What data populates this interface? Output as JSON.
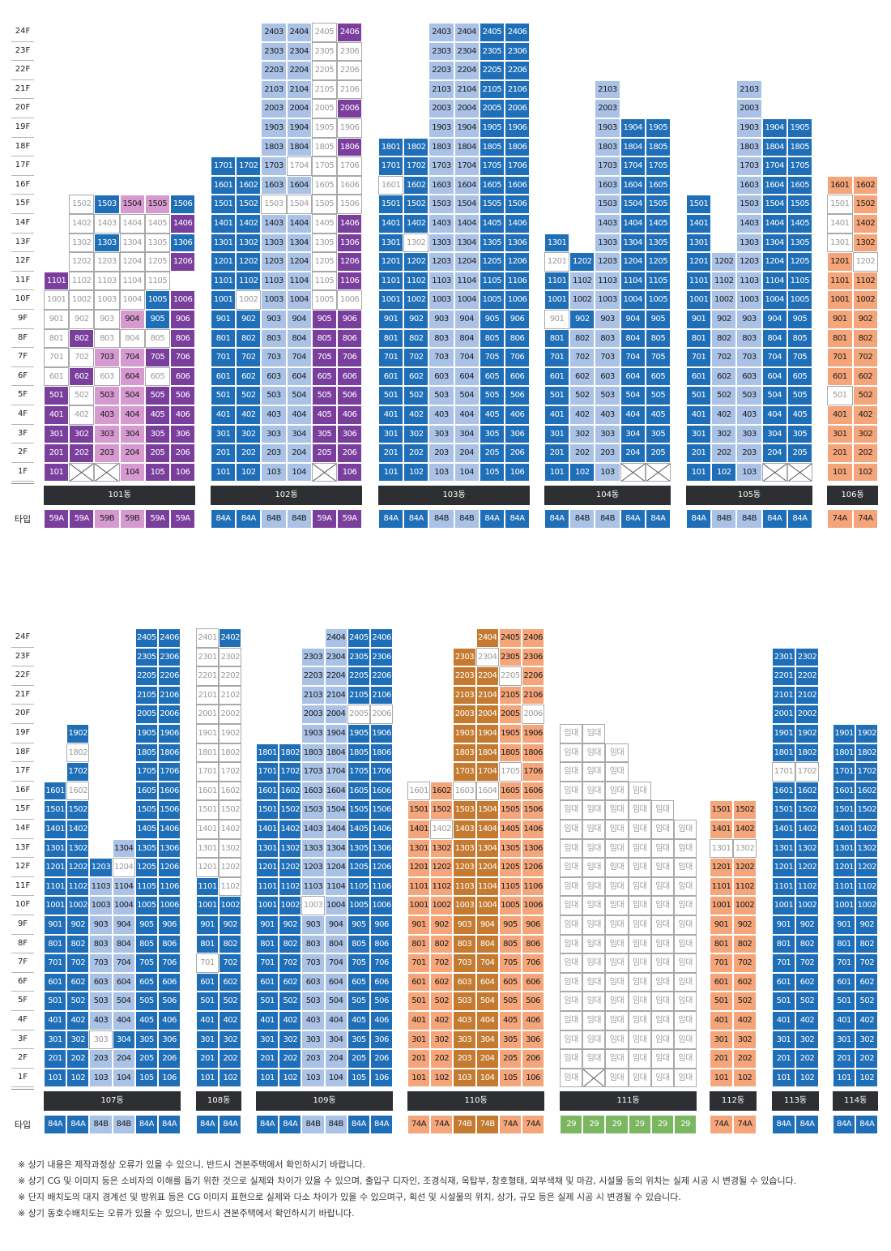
{
  "colors": {
    "D": "#1f6fb8",
    "L": "#a9c2e6",
    "P": "#7a3e9d",
    "K": "#d69ad0",
    "O": "#f4a57a",
    "B": "#c47a30",
    "W": "#ffffff",
    "G": "#7bb661"
  },
  "type_label": "타입",
  "floors": [
    "24F",
    "23F",
    "22F",
    "21F",
    "20F",
    "19F",
    "18F",
    "17F",
    "16F",
    "15F",
    "14F",
    "13F",
    "12F",
    "11F",
    "10F",
    "9F",
    "8F",
    "7F",
    "6F",
    "5F",
    "4F",
    "3F",
    "2F",
    "1F"
  ],
  "sections": [
    {
      "buildings": [
        {
          "name": "101동",
          "types": [
            "59A",
            "59A",
            "59B",
            "59B",
            "59A",
            "59A"
          ],
          "type_colors": "PPKKPP",
          "top": 15,
          "overrides": {
            "15": "WDKKD",
            "14": "WWWW",
            "13": "WDWWD",
            "12": "WWWW",
            "11": "PWWWW",
            "10": "WWWWDP",
            "9": "WWWKDP",
            "8": "WPWWWP",
            "7": "WWKKPP",
            "6": "WPWKWP",
            "5": "PWKKPP",
            "4": "PWKKPP",
            "3": "PPKKPP",
            "2": "PPKKPP",
            "1": "PPXKPP"
          },
          "xcols": [
            [
              1,
              2
            ]
          ],
          "col_counts": {
            "15": [
              1,
              5
            ],
            "14": [
              1,
              5
            ],
            "13": [
              1,
              5
            ],
            "12": [
              1,
              5
            ],
            "11": [
              0,
              5
            ]
          }
        },
        {
          "name": "102동",
          "types": [
            "84A",
            "84A",
            "84B",
            "84B",
            "59A",
            "59A"
          ],
          "type_colors": "DDLLPP",
          "top": 24,
          "overrides": {
            "24": "LLWP",
            "23": "LLWW",
            "22": "LLWW",
            "21": "LLWW",
            "20": "LLWP",
            "19": "LLWW",
            "18": "LLWP",
            "17": "DDLWWW",
            "16": "DDLLWW",
            "15": "DDWWWW",
            "14": "DDLLWP",
            "13": "DDLLWP",
            "12": "DDLLWP",
            "11": "DDLLWP",
            "10": "DWLLWW",
            "1": "DDLLXP"
          },
          "col_counts": {
            "24": [
              2,
              4
            ],
            "23": [
              2,
              4
            ],
            "22": [
              2,
              4
            ],
            "21": [
              2,
              4
            ],
            "20": [
              2,
              4
            ],
            "19": [
              2,
              4
            ],
            "18": [
              2,
              4
            ]
          }
        },
        {
          "name": "103동",
          "types": [
            "84A",
            "84A",
            "84B",
            "84B",
            "84A",
            "84A"
          ],
          "type_colors": "DDLLDD",
          "top": 24,
          "overrides": {
            "16": "WDLLDD",
            "13": "DWLLDD"
          },
          "col_counts": {
            "24": [
              2,
              4
            ],
            "23": [
              2,
              4
            ],
            "22": [
              2,
              4
            ],
            "21": [
              2,
              4
            ],
            "20": [
              2,
              4
            ],
            "19": [
              2,
              4
            ]
          }
        },
        {
          "name": "104동",
          "types": [
            "84A",
            "84B",
            "84B",
            "84A",
            "84A"
          ],
          "type_colors": "DLLDD",
          "top": 21,
          "overrides": {
            "12": "WDLDD",
            "9": "WDLDD",
            "1": "DDLXX"
          },
          "col_counts": {
            "21": [
              2,
              1
            ],
            "20": [
              2,
              1
            ],
            "19": [
              2,
              3
            ],
            "18": [
              2,
              3
            ],
            "17": [
              2,
              3
            ],
            "16": [
              2,
              3
            ],
            "15": [
              2,
              3
            ],
            "14": [
              2,
              3
            ],
            "13": [
              0,
              1,
              2,
              3
            ]
          }
        },
        {
          "name": "105동",
          "types": [
            "84A",
            "84B",
            "84B",
            "84A",
            "84A"
          ],
          "type_colors": "DLLDD",
          "top": 21,
          "overrides": {
            "1": "DDLXX"
          },
          "col_counts": {
            "21": [
              2,
              1
            ],
            "20": [
              2,
              1
            ],
            "19": [
              2,
              3
            ],
            "18": [
              2,
              3
            ],
            "17": [
              2,
              3
            ],
            "16": [
              2,
              3
            ],
            "15": [
              0,
              1,
              2,
              3
            ],
            "14": [
              0,
              1,
              2,
              3
            ],
            "13": [
              0,
              1,
              2,
              3
            ]
          }
        },
        {
          "name": "106동",
          "types": [
            "74A",
            "74A"
          ],
          "type_colors": "OO",
          "top": 16,
          "overrides": {
            "15": "WO",
            "14": "WO",
            "13": "WO",
            "12": "OW",
            "5": "WO"
          }
        }
      ]
    },
    {
      "buildings": [
        {
          "name": "107동",
          "types": [
            "84A",
            "84A",
            "84B",
            "84B",
            "84A",
            "84A"
          ],
          "type_colors": "DDLLDD",
          "top": 24,
          "overrides": {
            "18": "WDD",
            "16": "DW",
            "12": "DDDWDD",
            "3": "DDWDDD"
          },
          "col_counts": {
            "24": [
              4,
              2
            ],
            "23": [
              4,
              2
            ],
            "22": [
              4,
              2
            ],
            "21": [
              4,
              2
            ],
            "20": [
              4,
              2
            ],
            "19": [
              1,
              1,
              4,
              2
            ],
            "18": [
              1,
              1,
              4,
              2
            ],
            "17": [
              1,
              1,
              4,
              2
            ],
            "16": [
              0,
              2,
              4,
              2
            ],
            "15": [
              0,
              2,
              4,
              2
            ],
            "14": [
              0,
              2,
              4,
              2
            ],
            "13": [
              0,
              2,
              3,
              3
            ]
          }
        },
        {
          "name": "108동",
          "types": [
            "84A",
            "84A"
          ],
          "type_colors": "DD",
          "top": 24,
          "overrides": {
            "24": "WD",
            "23": "WW",
            "22": "WW",
            "21": "WW",
            "20": "WW",
            "19": "WW",
            "18": "WW",
            "17": "WW",
            "16": "WW",
            "15": "WW",
            "14": "WW",
            "13": "WW",
            "12": "WW",
            "11": "DW",
            "7": "WD"
          }
        },
        {
          "name": "109동",
          "types": [
            "84A",
            "84A",
            "84B",
            "84B",
            "84A",
            "84A"
          ],
          "type_colors": "DDLLDD",
          "top": 24,
          "overrides": {
            "20": "LLWW",
            "10": "DDWLDD"
          },
          "col_counts": {
            "24": [
              3,
              3
            ],
            "23": [
              2,
              4
            ],
            "22": [
              2,
              4
            ],
            "21": [
              2,
              4
            ],
            "20": [
              2,
              4
            ],
            "19": [
              2,
              4
            ]
          }
        },
        {
          "name": "110동",
          "types": [
            "74A",
            "74A",
            "74B",
            "74B",
            "74A",
            "74A"
          ],
          "type_colors": "OOBBOO",
          "top": 24,
          "overrides": {
            "23": "BWOO",
            "22": "BBWO",
            "20": "BBOW",
            "17": "BBWO",
            "16": "WOWWOO",
            "14": "OWBBOO"
          },
          "col_counts": {
            "24": [
              3,
              3
            ],
            "23": [
              2,
              4
            ],
            "22": [
              2,
              4
            ],
            "21": [
              2,
              4
            ],
            "20": [
              2,
              4
            ],
            "19": [
              2,
              4
            ],
            "18": [
              2,
              4
            ],
            "17": [
              2,
              4
            ]
          }
        },
        {
          "name": "111동",
          "types": [
            "29",
            "29",
            "29",
            "29",
            "29",
            "29"
          ],
          "type_colors": "GGGGGG",
          "top": 19,
          "rental": "임대",
          "xcols": [
            [
              1,
              1
            ]
          ],
          "col_counts": {
            "19": [
              0,
              2
            ],
            "18": [
              0,
              3
            ],
            "17": [
              0,
              3
            ],
            "16": [
              0,
              4
            ],
            "15": [
              0,
              5
            ]
          }
        },
        {
          "name": "112동",
          "types": [
            "74A",
            "74A"
          ],
          "type_colors": "OO",
          "top": 15,
          "overrides": {
            "13": "WW"
          }
        },
        {
          "name": "113동",
          "types": [
            "84A",
            "84A"
          ],
          "type_colors": "DD",
          "top": 23,
          "overrides": {
            "17": "WW"
          }
        },
        {
          "name": "114동",
          "types": [
            "84A",
            "84A"
          ],
          "type_colors": "DD",
          "top": 19
        }
      ]
    }
  ],
  "notes": [
    "※ 상기 내용은 제작과정상 오류가 있을 수 있으니, 반드시 견본주택에서 확인하시기 바랍니다.",
    "※ 상기 CG 및 이미지 등은 소비자의 이해를 돕기 위한 것으로 실제와 차이가 있을 수 있으며, 출입구 디자인, 조경식재, 옥탑부, 창호형태, 외부색채 및 마감, 시설물 등의 위치는 실제 시공 시 변경될 수 있습니다.",
    "※ 단지 배치도의 대지 경계선 및 방위표 등은 CG 이미지 표현으로 실제와 다소 차이가 있을 수 있으며구, 획선 및 시설물의 위치, 상가, 규모 등은 실제 시공 시 변경될 수 있습니다.",
    "※ 상기 동호수배치도는 오류가 있을 수 있으니, 반드시 견본주택에서 확인하시기 바랍니다."
  ]
}
